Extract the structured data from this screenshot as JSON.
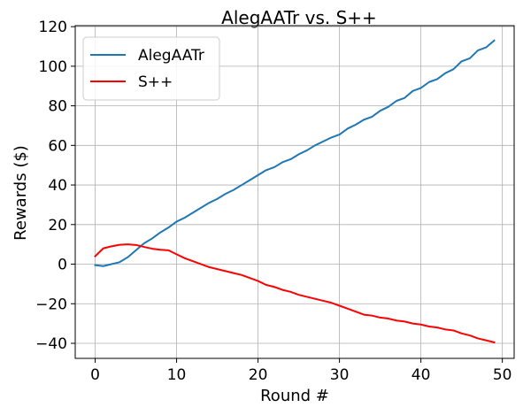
{
  "chart_data": {
    "type": "line",
    "title": "AlegAATr vs. S++",
    "xlabel": "Round #",
    "ylabel": "Rewards ($)",
    "xlim": [
      -2.45,
      51.45
    ],
    "ylim": [
      -47.6,
      120.5
    ],
    "xticks": [
      0,
      10,
      20,
      30,
      40,
      50
    ],
    "yticks": [
      -40,
      -20,
      0,
      20,
      40,
      60,
      80,
      100,
      120
    ],
    "grid": true,
    "legend_position": "top-left",
    "series": [
      {
        "name": "AlegAATr",
        "color": "#1f77b4",
        "x": [
          0,
          1,
          2,
          3,
          4,
          5,
          6,
          7,
          8,
          9,
          10,
          11,
          12,
          13,
          14,
          15,
          16,
          17,
          18,
          19,
          20,
          21,
          22,
          23,
          24,
          25,
          26,
          27,
          28,
          29,
          30,
          31,
          32,
          33,
          34,
          35,
          36,
          37,
          38,
          39,
          40,
          41,
          42,
          43,
          44,
          45,
          46,
          47,
          48,
          49
        ],
        "values": [
          -0.5,
          -1,
          0,
          1,
          3.5,
          7,
          10.5,
          13,
          16,
          18.5,
          21.5,
          23.5,
          26,
          28.5,
          31,
          33,
          35.5,
          37.5,
          40,
          42.5,
          45,
          47.5,
          49,
          51.5,
          53,
          55.5,
          57.5,
          60,
          62,
          64,
          65.5,
          68.5,
          70.5,
          73,
          74.5,
          77.5,
          79.5,
          82.5,
          84,
          87.5,
          89,
          92,
          93.5,
          96.5,
          98.5,
          102.5,
          104,
          108,
          109.5,
          113
        ]
      },
      {
        "name": "S++",
        "color": "#ff0000",
        "x": [
          0,
          1,
          2,
          3,
          4,
          5,
          6,
          7,
          8,
          9,
          10,
          11,
          12,
          13,
          14,
          15,
          16,
          17,
          18,
          19,
          20,
          21,
          22,
          23,
          24,
          25,
          26,
          27,
          28,
          29,
          30,
          31,
          32,
          33,
          34,
          35,
          36,
          37,
          38,
          39,
          40,
          41,
          42,
          43,
          44,
          45,
          46,
          47,
          48,
          49
        ],
        "values": [
          4,
          8,
          9,
          9.8,
          10,
          9.7,
          8.7,
          7.8,
          7.3,
          7,
          5,
          3,
          1.5,
          0,
          -1.5,
          -2.5,
          -3.5,
          -4.5,
          -5.5,
          -7,
          -8.5,
          -10.5,
          -11.5,
          -13,
          -14,
          -15.5,
          -16.5,
          -17.5,
          -18.5,
          -19.5,
          -21,
          -22.5,
          -24,
          -25.5,
          -26,
          -27,
          -27.5,
          -28.5,
          -29,
          -30,
          -30.5,
          -31.5,
          -32,
          -33,
          -33.5,
          -35,
          -36,
          -37.5,
          -38.5,
          -39.5
        ]
      }
    ]
  }
}
